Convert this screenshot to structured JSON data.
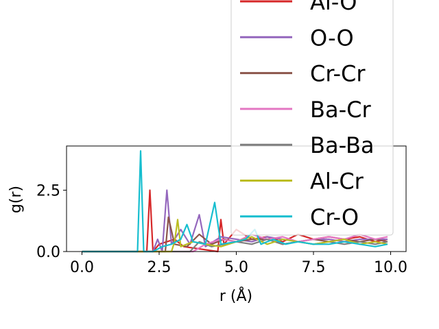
{
  "chart_data": {
    "type": "line",
    "xlabel": "r (Å)",
    "ylabel": "g(r)",
    "xlim": [
      -0.5,
      10.5
    ],
    "ylim": [
      0.0,
      4.3
    ],
    "x_ticks": [
      0.0,
      2.5,
      5.0,
      7.5,
      10.0
    ],
    "x_tick_labels": [
      "0.0",
      "2.5",
      "5.0",
      "7.5",
      "10.0"
    ],
    "y_ticks": [
      0.0,
      2.5
    ],
    "y_tick_labels": [
      "0.0",
      "2.5"
    ],
    "grid": false,
    "legend_position": "upper-right",
    "series": [
      {
        "name": "Al-O",
        "color": "#d62728",
        "x": [
          0.0,
          1.8,
          2.1,
          2.2,
          2.3,
          2.5,
          3.0,
          3.3,
          4.4,
          4.5,
          4.6,
          5.0,
          5.5,
          6.0,
          6.5,
          7.0,
          7.5,
          8.0,
          8.5,
          9.0,
          9.5,
          9.9
        ],
        "y": [
          0.0,
          0.0,
          0.0,
          2.5,
          0.0,
          0.3,
          0.5,
          0.2,
          0.0,
          1.3,
          0.3,
          0.9,
          0.5,
          0.6,
          0.4,
          0.7,
          0.5,
          0.6,
          0.5,
          0.6,
          0.4,
          0.5
        ]
      },
      {
        "name": "O-O",
        "color": "#9467bd",
        "x": [
          0.0,
          2.3,
          2.45,
          2.6,
          2.75,
          2.9,
          3.2,
          3.5,
          3.8,
          4.0,
          4.5,
          5.0,
          5.5,
          6.0,
          6.5,
          7.0,
          7.5,
          8.0,
          8.5,
          9.0,
          9.5,
          9.9
        ],
        "y": [
          0.0,
          0.0,
          0.5,
          0.0,
          2.5,
          0.3,
          0.9,
          0.3,
          1.5,
          0.2,
          0.6,
          0.5,
          0.4,
          0.6,
          0.5,
          0.4,
          0.5,
          0.5,
          0.4,
          0.5,
          0.5,
          0.5
        ]
      },
      {
        "name": "Cr-Cr",
        "color": "#8c564b",
        "x": [
          0.0,
          2.7,
          2.8,
          3.0,
          3.4,
          3.8,
          4.2,
          4.6,
          5.0,
          5.5,
          6.0,
          6.5,
          7.0,
          7.5,
          8.0,
          8.5,
          9.0,
          9.5,
          9.9
        ],
        "y": [
          0.0,
          0.0,
          1.4,
          0.3,
          0.2,
          0.7,
          0.3,
          0.5,
          0.4,
          0.5,
          0.5,
          0.3,
          0.4,
          0.5,
          0.4,
          0.5,
          0.4,
          0.5,
          0.4
        ]
      },
      {
        "name": "Ba-Cr",
        "color": "#e377c2",
        "x": [
          0.0,
          3.6,
          4.0,
          4.5,
          5.0,
          5.5,
          6.0,
          6.5,
          7.0,
          7.5,
          8.0,
          8.5,
          9.0,
          9.5,
          9.9
        ],
        "y": [
          0.0,
          0.0,
          0.3,
          0.5,
          0.4,
          0.7,
          0.5,
          0.6,
          0.4,
          0.5,
          0.6,
          0.5,
          0.7,
          0.5,
          0.6
        ]
      },
      {
        "name": "Ba-Ba",
        "color": "#7f7f7f",
        "x": [
          0.0,
          3.5,
          3.8,
          4.2,
          4.6,
          5.0,
          5.5,
          6.0,
          6.5,
          7.0,
          7.5,
          8.0,
          8.5,
          9.0,
          9.5,
          9.9
        ],
        "y": [
          0.0,
          0.0,
          0.4,
          0.2,
          0.3,
          0.4,
          0.3,
          0.5,
          0.3,
          0.4,
          0.3,
          0.4,
          0.3,
          0.4,
          0.3,
          0.4
        ]
      },
      {
        "name": "Al-Cr",
        "color": "#bcbd22",
        "x": [
          0.0,
          2.9,
          3.0,
          3.1,
          3.2,
          3.6,
          4.0,
          4.5,
          5.0,
          5.5,
          6.0,
          6.5,
          7.0,
          7.5,
          8.0,
          8.5,
          9.0,
          9.5,
          9.9
        ],
        "y": [
          0.0,
          0.0,
          0.4,
          1.3,
          0.2,
          0.4,
          0.3,
          0.2,
          0.4,
          0.6,
          0.3,
          0.5,
          0.4,
          0.3,
          0.4,
          0.5,
          0.3,
          0.4,
          0.3
        ]
      },
      {
        "name": "Cr-O",
        "color": "#17becf",
        "x": [
          0.0,
          1.8,
          1.9,
          2.0,
          2.3,
          2.6,
          2.9,
          3.2,
          3.4,
          3.6,
          4.0,
          4.3,
          4.5,
          5.0,
          5.3,
          5.6,
          5.8,
          6.2,
          6.6,
          7.0,
          7.5,
          8.0,
          8.5,
          9.0,
          9.5,
          9.9
        ],
        "y": [
          0.0,
          0.0,
          4.1,
          0.0,
          0.0,
          0.2,
          0.3,
          0.5,
          1.1,
          0.4,
          0.3,
          2.0,
          0.3,
          0.4,
          0.5,
          0.9,
          0.3,
          0.5,
          0.3,
          0.4,
          0.3,
          0.3,
          0.4,
          0.3,
          0.2,
          0.3
        ]
      }
    ]
  }
}
